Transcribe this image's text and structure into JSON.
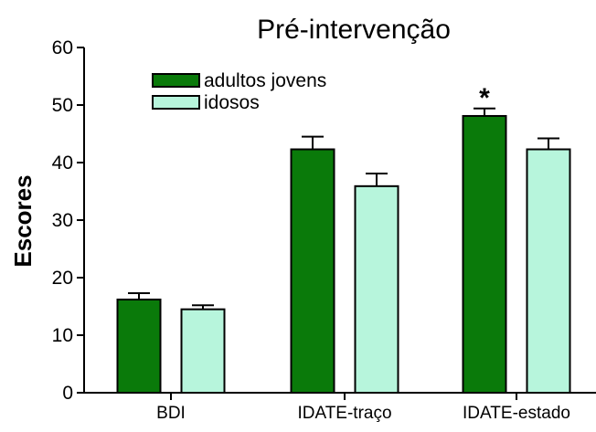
{
  "chart_data": {
    "type": "bar",
    "title": "Pré-intervenção",
    "xlabel": "",
    "ylabel": "Escores",
    "ylim": [
      0,
      60
    ],
    "yticks": [
      0,
      10,
      20,
      30,
      40,
      50,
      60
    ],
    "categories": [
      "BDI",
      "IDATE-traço",
      "IDATE-estado"
    ],
    "series": [
      {
        "name": "adultos jovens",
        "color": "#0a7a0a",
        "values": [
          16.2,
          42.3,
          48.1
        ],
        "errors": [
          1.1,
          2.2,
          1.3
        ]
      },
      {
        "name": "idosos",
        "color": "#b7f5dc",
        "values": [
          14.5,
          35.9,
          42.3
        ],
        "errors": [
          0.7,
          2.2,
          1.9
        ]
      }
    ],
    "annotations": [
      {
        "text": "*",
        "category": "IDATE-estado",
        "series": "adultos jovens"
      }
    ],
    "legend_position": "top-left",
    "grid": false
  }
}
